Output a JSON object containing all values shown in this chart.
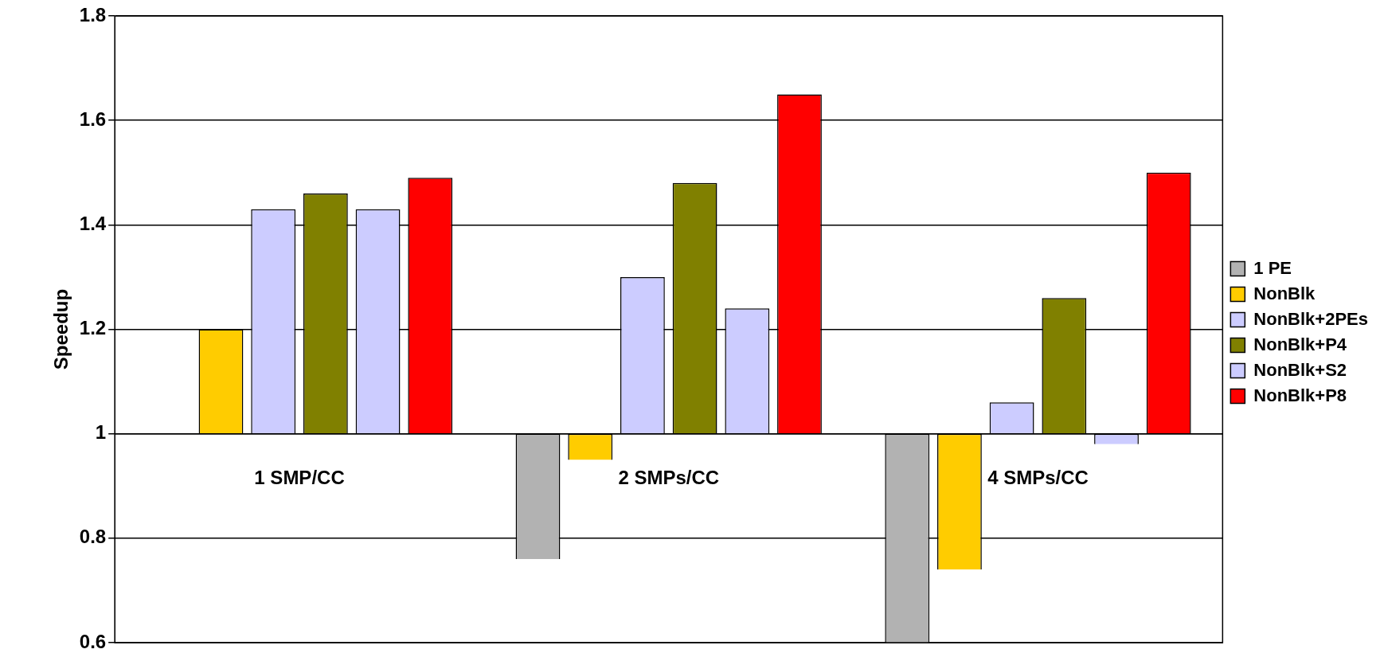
{
  "chart_data": {
    "type": "bar",
    "ylabel": "Speedup",
    "categories": [
      "1 SMP/CC",
      "2 SMPs/CC",
      "4 SMPs/CC"
    ],
    "series": [
      {
        "name": "1 PE",
        "color": "#b2b2b2",
        "base": [
          null,
          1,
          1
        ],
        "values": [
          null,
          -0.24,
          -0.4
        ]
      },
      {
        "name": "NonBlk",
        "color": "#ffcc00",
        "base": [
          1,
          1,
          1
        ],
        "values": [
          0.2,
          -0.05,
          -0.26
        ]
      },
      {
        "name": "NonBlk+2PEs",
        "color": "#ccccff",
        "base": [
          1,
          1,
          1
        ],
        "values": [
          0.43,
          0.3,
          0.06
        ]
      },
      {
        "name": "NonBlk+P4",
        "color": "#808000",
        "base": [
          1,
          1,
          1
        ],
        "values": [
          0.46,
          0.48,
          0.26
        ]
      },
      {
        "name": "NonBlk+S2",
        "color": "#ccccff",
        "base": [
          1,
          1,
          1
        ],
        "values": [
          0.43,
          0.24,
          -0.02
        ]
      },
      {
        "name": "NonBlk+P8",
        "color": "#ff0000",
        "base": [
          1,
          1,
          1
        ],
        "values": [
          0.49,
          0.65,
          0.5
        ]
      }
    ],
    "ylim": [
      0.6,
      1.8
    ],
    "yticks": [
      0.6,
      0.8,
      1,
      1.2,
      1.4,
      1.6,
      1.8
    ],
    "grid": "y",
    "legend": "right"
  }
}
